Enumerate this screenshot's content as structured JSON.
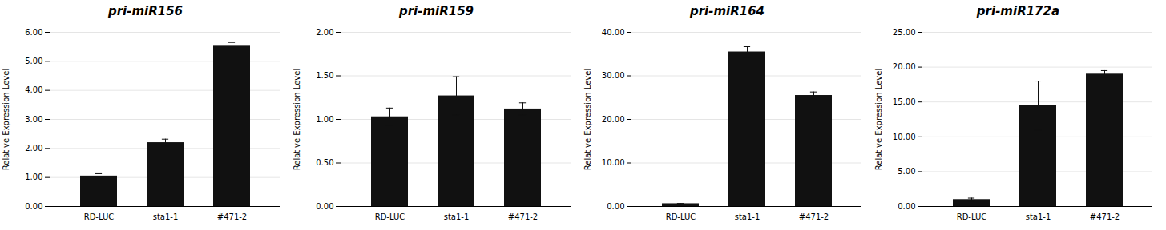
{
  "chart_data": [
    {
      "type": "bar",
      "title": "pri-miR156",
      "categories": [
        "RD-LUC",
        "sta1-1",
        "#471-2"
      ],
      "values": [
        1.05,
        2.2,
        5.55
      ],
      "errors": [
        0.08,
        0.12,
        0.1
      ],
      "color": "#111111",
      "y_label": "Relative Expression Level",
      "ylim": [
        0,
        6.0
      ],
      "yticks": [
        {
          "value": 0.0,
          "label": "0.00"
        },
        {
          "value": 1.0,
          "label": "1.00"
        },
        {
          "value": 2.0,
          "label": "2.00"
        },
        {
          "value": 3.0,
          "label": "3.00"
        },
        {
          "value": 4.0,
          "label": "4.00"
        },
        {
          "value": 5.0,
          "label": "5.00"
        },
        {
          "value": 6.0,
          "label": "6.00"
        }
      ],
      "grid": true
    },
    {
      "type": "bar",
      "title": "pri-miR159",
      "categories": [
        "RD-LUC",
        "sta1-1",
        "#471-2"
      ],
      "values": [
        1.03,
        1.27,
        1.12
      ],
      "errors": [
        0.1,
        0.22,
        0.07
      ],
      "color": "#111111",
      "y_label": "Relative Expression Level",
      "ylim": [
        0,
        2.0
      ],
      "yticks": [
        {
          "value": 0.0,
          "label": "0.00"
        },
        {
          "value": 0.5,
          "label": "0.50"
        },
        {
          "value": 1.0,
          "label": "1.00"
        },
        {
          "value": 1.5,
          "label": "1.50"
        },
        {
          "value": 2.0,
          "label": "2.00"
        }
      ],
      "grid": true
    },
    {
      "type": "bar",
      "title": "pri-miR164",
      "categories": [
        "RD-LUC",
        "sta1-1",
        "#471-2"
      ],
      "values": [
        0.65,
        35.5,
        25.5
      ],
      "errors": [
        0.05,
        1.2,
        0.8
      ],
      "color": "#111111",
      "y_label": "Relative Expression Level",
      "ylim": [
        0,
        40.0
      ],
      "yticks": [
        {
          "value": 0.0,
          "label": "0.00"
        },
        {
          "value": 10.0,
          "label": "10.00"
        },
        {
          "value": 20.0,
          "label": "20.00"
        },
        {
          "value": 30.0,
          "label": "30.00"
        },
        {
          "value": 40.0,
          "label": "40.00"
        }
      ],
      "grid": true
    },
    {
      "type": "bar",
      "title": "pri-miR172a",
      "categories": [
        "RD-LUC",
        "sta1-1",
        "#471-2"
      ],
      "values": [
        1.0,
        14.5,
        19.0
      ],
      "errors": [
        0.2,
        3.5,
        0.5
      ],
      "color": "#111111",
      "y_label": "Relative Expression Level",
      "ylim": [
        0,
        25.0
      ],
      "yticks": [
        {
          "value": 0.0,
          "label": "0.00"
        },
        {
          "value": 5.0,
          "label": "5.00"
        },
        {
          "value": 10.0,
          "label": "10.00"
        },
        {
          "value": 15.0,
          "label": "15.00"
        },
        {
          "value": 20.0,
          "label": "20.00"
        },
        {
          "value": 25.0,
          "label": "25.00"
        }
      ],
      "grid": true
    }
  ]
}
